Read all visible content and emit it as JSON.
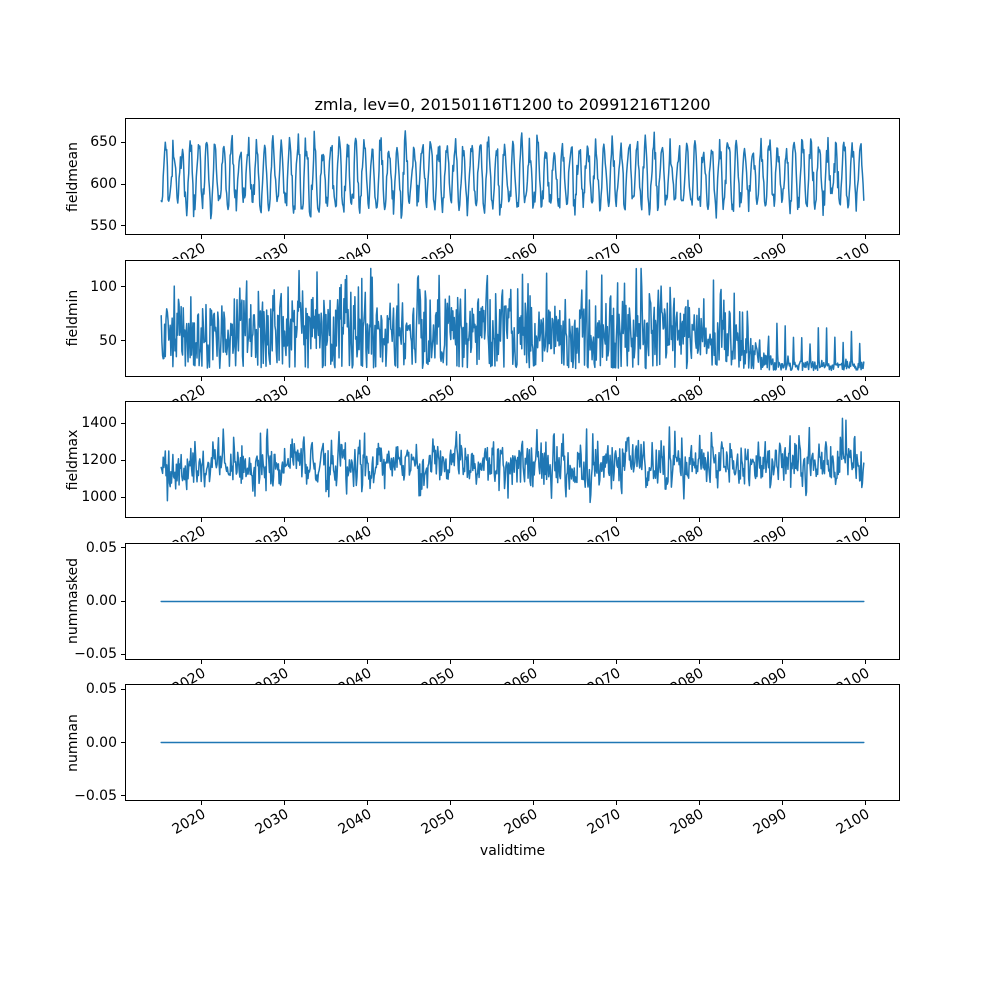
{
  "chart_data": {
    "type": "line",
    "title": "zmla, lev=0, 20150116T1200 to 20991216T1200",
    "variable": "zmla",
    "level": "lev=0",
    "period_start": "20150116T1200",
    "period_end": "20991216T1200",
    "xlabel": "validtime",
    "line_color": "#1f77b4",
    "grid": false,
    "legend": null,
    "x": {
      "name": "validtime",
      "n_points": 1020,
      "start_year": 2015.0417,
      "step_years": 0.0833333,
      "lim": [
        2010.79,
        2104.21
      ],
      "ticks": [
        2020,
        2030,
        2040,
        2050,
        2060,
        2070,
        2080,
        2090,
        2100
      ],
      "tick_labels": [
        "2020",
        "2030",
        "2040",
        "2050",
        "2060",
        "2070",
        "2080",
        "2090",
        "2100"
      ],
      "tick_rotation_deg": 30
    },
    "subplots": [
      {
        "ylabel": "fieldmean",
        "ylim": [
          539,
          679
        ],
        "yticks": [
          550,
          600,
          650
        ],
        "ytick_labels": [
          "550",
          "600",
          "650"
        ],
        "summary": "Monthly mean with annual seasonal cycle, oscillating between ~560 and ~665; overall mean ~610, extremes ~548 and ~676.",
        "gen": {
          "kind": "seasonal",
          "seed": 42,
          "mean": 610,
          "seasonal_amp": 36,
          "amp_jitter": 0.35,
          "noise_sd": 8,
          "clip": [
            547,
            676
          ]
        }
      },
      {
        "ylabel": "fieldmin",
        "ylim": [
          17,
          125
        ],
        "yticks": [
          50,
          100
        ],
        "ytick_labels": [
          "50",
          "100"
        ],
        "summary": "Noisy monthly minimum, ~20-118 with mean ~58 until ~2080, hump near 2084, then collapsing to ~22-28 baseline with small annual spikes to ~55 after ~2088.",
        "gen": {
          "kind": "spiky",
          "seed": 1337,
          "base": 22,
          "mean_dev": 36,
          "dev_sd": 23,
          "clip": [
            19,
            118
          ],
          "amp_breakpoints": [
            [
              2015,
              1
            ],
            [
              2076,
              1
            ],
            [
              2079,
              0.8
            ],
            [
              2082,
              0.95
            ],
            [
              2084,
              1.05
            ],
            [
              2087,
              0.4
            ],
            [
              2090,
              0.13
            ],
            [
              2100,
              0.13
            ]
          ],
          "late_spike_start": 2088,
          "late_spike_month": 5,
          "late_spike_amp": 33
        }
      },
      {
        "ylabel": "fieldmax",
        "ylim": [
          888,
          1520
        ],
        "yticks": [
          1000,
          1200,
          1400
        ],
        "ytick_labels": [
          "1000",
          "1200",
          "1400"
        ],
        "summary": "Noisy monthly maximum around ~1175, typical range 1000-1350, extremes ~920 and ~1487, no trend.",
        "gen": {
          "kind": "noise",
          "seed": 2024,
          "mean": 1175,
          "sd": 92,
          "smooth": 0.25,
          "clip": [
            918,
            1487
          ]
        }
      },
      {
        "ylabel": "nummasked",
        "ylim": [
          -0.055,
          0.055
        ],
        "yticks": [
          -0.05,
          0,
          0.05
        ],
        "ytick_labels": [
          "−0.05",
          "0.00",
          "0.05"
        ],
        "summary": "Constant zero over the whole period.",
        "gen": {
          "kind": "const",
          "seed": 1,
          "value": 0
        }
      },
      {
        "ylabel": "numnan",
        "ylim": [
          -0.055,
          0.055
        ],
        "yticks": [
          -0.05,
          0,
          0.05
        ],
        "ytick_labels": [
          "−0.05",
          "0.00",
          "0.05"
        ],
        "summary": "Constant zero over the whole period.",
        "gen": {
          "kind": "const",
          "seed": 2,
          "value": 0
        }
      }
    ]
  }
}
